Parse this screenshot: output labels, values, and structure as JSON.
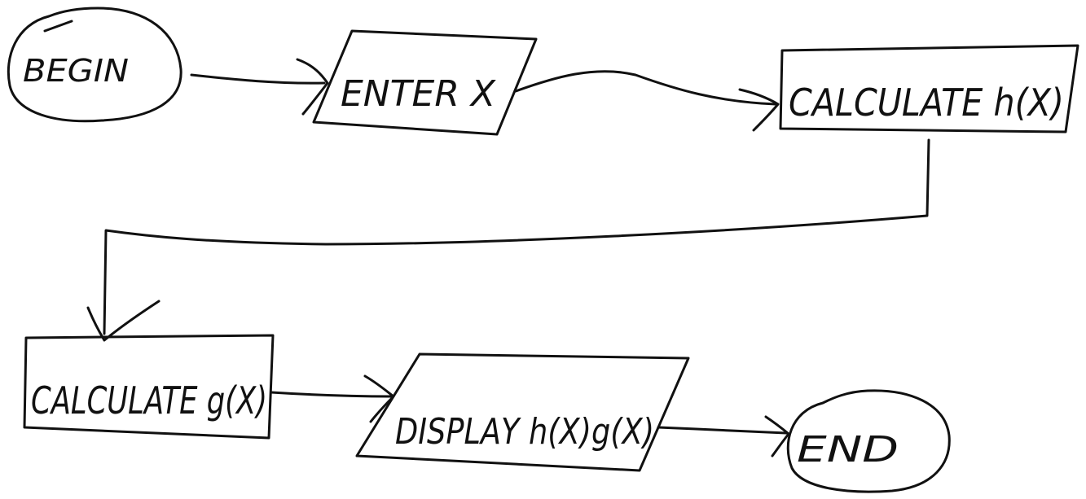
{
  "flowchart": {
    "nodes": [
      {
        "id": "begin",
        "shape": "terminal",
        "label": "BEGIN"
      },
      {
        "id": "enter",
        "shape": "input-output",
        "label": "ENTER X"
      },
      {
        "id": "calc_h",
        "shape": "process",
        "label": "CALCULATE h(X)"
      },
      {
        "id": "calc_g",
        "shape": "process",
        "label": "CALCULATE g(X)"
      },
      {
        "id": "display",
        "shape": "input-output",
        "label": "DISPLAY h(X)g(X)"
      },
      {
        "id": "end",
        "shape": "terminal",
        "label": "END"
      }
    ],
    "edges": [
      {
        "from": "begin",
        "to": "enter"
      },
      {
        "from": "enter",
        "to": "calc_h"
      },
      {
        "from": "calc_h",
        "to": "calc_g"
      },
      {
        "from": "calc_g",
        "to": "display"
      },
      {
        "from": "display",
        "to": "end"
      }
    ],
    "style": {
      "ink": "#111111",
      "background": "#ffffff"
    }
  }
}
